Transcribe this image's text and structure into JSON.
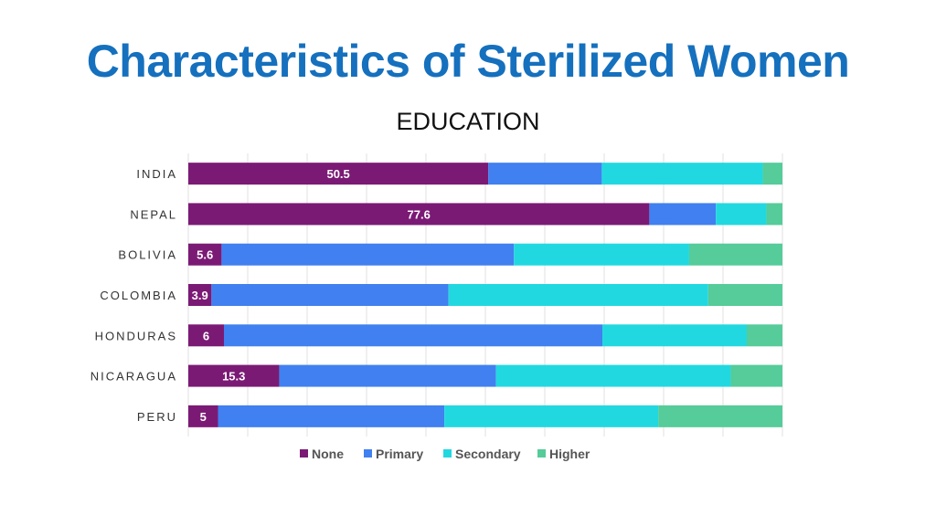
{
  "title": "Characteristics of Sterilized Women",
  "chart_data": {
    "type": "bar",
    "orientation": "horizontal",
    "stacked": true,
    "title": "EDUCATION",
    "categories": [
      "INDIA",
      "NEPAL",
      "BOLIVIA",
      "COLOMBIA",
      "HONDURAS",
      "NICARAGUA",
      "PERU"
    ],
    "series": [
      {
        "name": "None",
        "color": "#7b1a75",
        "values": [
          50.5,
          77.6,
          5.6,
          3.9,
          6,
          15.3,
          5
        ],
        "labels": [
          "50.5",
          "77.6",
          "5.6",
          "3.9",
          "6",
          "15.3",
          "5"
        ]
      },
      {
        "name": "Primary",
        "color": "#4080f0",
        "values": [
          19.1,
          11.2,
          49.2,
          39.9,
          63.7,
          36.5,
          38.1
        ]
      },
      {
        "name": "Secondary",
        "color": "#22d8e0",
        "values": [
          27.1,
          8.5,
          29.5,
          43.7,
          24.3,
          39.5,
          36
        ]
      },
      {
        "name": "Higher",
        "color": "#55cc99",
        "values": [
          3.3,
          2.7,
          15.7,
          12.5,
          6,
          8.7,
          20.9
        ]
      }
    ],
    "xlim": [
      0,
      100
    ],
    "grid": true,
    "legend": "bottom"
  }
}
